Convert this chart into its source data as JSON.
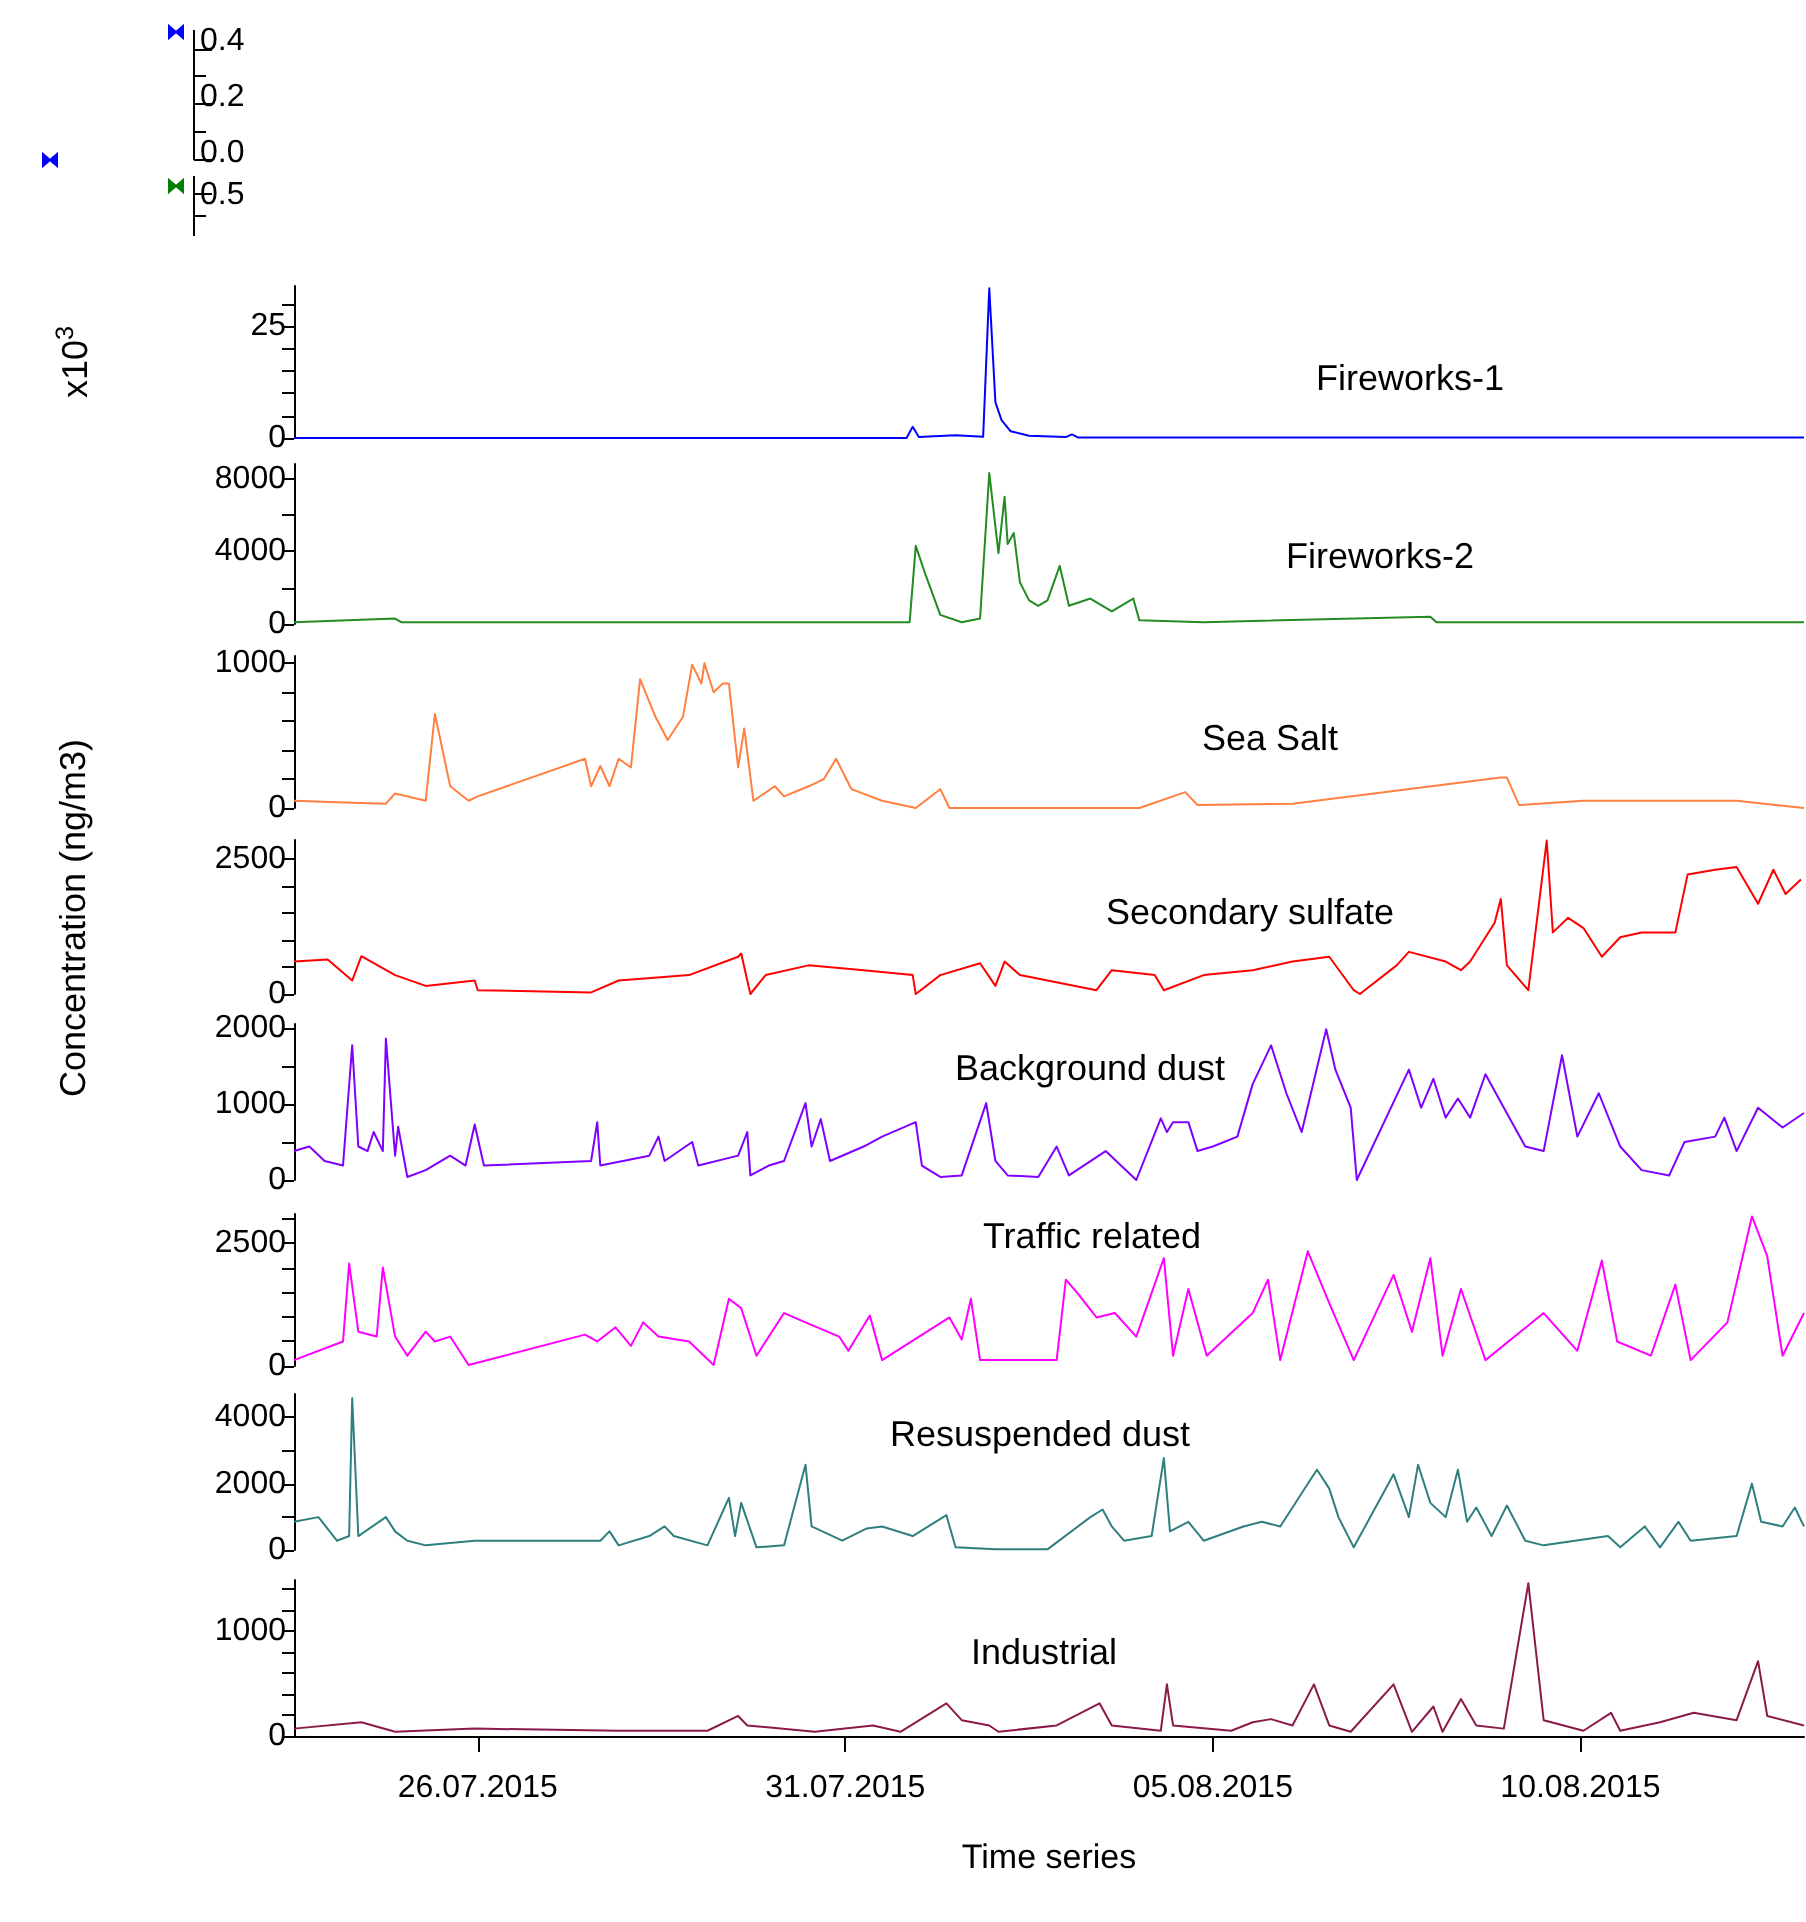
{
  "chart_data": [
    {
      "type": "other",
      "annotations": [
        "0.4",
        "0.2",
        "0.0",
        "0.5"
      ]
    },
    {
      "type": "line",
      "title": "Fireworks-1",
      "ylabel": "x10$^{3}$",
      "xlim": [
        "2015-07-23T12:00",
        "2015-08-13T01:00"
      ],
      "ylim": [
        0,
        34
      ],
      "yticks": [
        0,
        {
          "value": 5,
          "label": null
        },
        {
          "value": 10,
          "label": null
        },
        {
          "value": 15,
          "label": null
        },
        {
          "value": 20,
          "label": null
        },
        25,
        {
          "value": 30,
          "label": null
        }
      ],
      "tick_labels": "y",
      "x": [
        "2015-07-23T12:00",
        "2015-07-31T20:00",
        "2015-07-31T22:00",
        "2015-08-01T00:00",
        "2015-08-01T12:00",
        "2015-08-01T21:00",
        "2015-08-01T23:00",
        "2015-08-02T01:00",
        "2015-08-02T03:00",
        "2015-08-02T06:00",
        "2015-08-02T12:00",
        "2015-08-03T00:00",
        "2015-08-03T02:00",
        "2015-08-03T04:00",
        "2015-08-13T01:00"
      ],
      "series": [
        {
          "color": "#0000ff",
          "values": [
            0,
            0,
            2.5,
            0.2,
            0.6,
            0.3,
            33.5,
            8,
            4,
            1.5,
            0.5,
            0.2,
            0.8,
            0.1,
            0.1
          ]
        }
      ]
    },
    {
      "type": "line",
      "title": "Fireworks-2",
      "xlim": [
        "2015-07-23T12:00",
        "2015-08-13T01:00"
      ],
      "ylim": [
        0,
        8800
      ],
      "yticks": [
        0,
        {
          "value": 2000,
          "label": null
        },
        4000,
        {
          "value": 6000,
          "label": null
        },
        8000
      ],
      "tick_labels": "y",
      "x": [
        "2015-07-23T12:00",
        "2015-07-24T21:00",
        "2015-07-24T23:00",
        "2015-07-31T21:00",
        "2015-07-31T23:00",
        "2015-08-01T02:00",
        "2015-08-01T07:00",
        "2015-08-01T14:00",
        "2015-08-01T20:00",
        "2015-08-01T23:00",
        "2015-08-02T02:00",
        "2015-08-02T04:00",
        "2015-08-02T05:00",
        "2015-08-02T07:00",
        "2015-08-02T09:00",
        "2015-08-02T12:00",
        "2015-08-02T15:00",
        "2015-08-02T18:00",
        "2015-08-02T22:00",
        "2015-08-03T01:00",
        "2015-08-03T08:00",
        "2015-08-03T15:00",
        "2015-08-03T22:00",
        "2015-08-04T00:00",
        "2015-08-04T21:00",
        "2015-08-07T23:00",
        "2015-08-08T01:00",
        "2015-08-13T01:00"
      ],
      "series": [
        {
          "color": "#228b22",
          "values": [
            100,
            300,
            100,
            100,
            4300,
            2800,
            500,
            100,
            300,
            8300,
            3900,
            7000,
            4400,
            5000,
            2300,
            1300,
            1000,
            1300,
            3200,
            1000,
            1400,
            700,
            1400,
            200,
            100,
            400,
            100,
            100
          ]
        }
      ]
    },
    {
      "type": "line",
      "title": "Sea Salt",
      "xlim": [
        "2015-07-23T12:00",
        "2015-08-13T01:00"
      ],
      "ylim": [
        0,
        1050
      ],
      "yticks": [
        0,
        {
          "value": 200,
          "label": null
        },
        {
          "value": 400,
          "label": null
        },
        {
          "value": 600,
          "label": null
        },
        {
          "value": 800,
          "label": null
        },
        1000
      ],
      "tick_labels": "y",
      "x": [
        "2015-07-23T12:00",
        "2015-07-24T02:00",
        "2015-07-24T18:00",
        "2015-07-24T21:00",
        "2015-07-25T07:00",
        "2015-07-25T10:00",
        "2015-07-25T15:00",
        "2015-07-25T21:00",
        "2015-07-26T00:00",
        "2015-07-27T11:00",
        "2015-07-27T13:00",
        "2015-07-27T16:00",
        "2015-07-27T19:00",
        "2015-07-27T22:00",
        "2015-07-28T02:00",
        "2015-07-28T05:00",
        "2015-07-28T10:00",
        "2015-07-28T14:00",
        "2015-07-28T19:00",
        "2015-07-28T22:00",
        "2015-07-29T01:00",
        "2015-07-29T02:00",
        "2015-07-29T05:00",
        "2015-07-29T08:00",
        "2015-07-29T10:00",
        "2015-07-29T13:00",
        "2015-07-29T15:00",
        "2015-07-29T18:00",
        "2015-07-30T01:00",
        "2015-07-30T04:00",
        "2015-07-30T12:00",
        "2015-07-30T17:00",
        "2015-07-30T21:00",
        "2015-07-31T02:00",
        "2015-07-31T12:00",
        "2015-07-31T23:00",
        "2015-08-01T07:00",
        "2015-08-01T10:00",
        "2015-08-04T00:00",
        "2015-08-04T15:00",
        "2015-08-04T19:00",
        "2015-08-06T02:00",
        "2015-08-08T22:00",
        "2015-08-09T00:00",
        "2015-08-09T04:00",
        "2015-08-10T01:00",
        "2015-08-12T03:00",
        "2015-08-13T01:00"
      ],
      "series": [
        {
          "color": "#ff8040",
          "values": [
            50,
            40,
            30,
            100,
            50,
            650,
            150,
            50,
            80,
            340,
            150,
            290,
            150,
            340,
            280,
            890,
            630,
            470,
            630,
            990,
            860,
            1000,
            800,
            860,
            860,
            280,
            550,
            50,
            150,
            80,
            150,
            200,
            340,
            130,
            50,
            0,
            130,
            0,
            0,
            110,
            20,
            30,
            210,
            210,
            20,
            50,
            50,
            0
          ]
        }
      ]
    },
    {
      "type": "line",
      "title": "Secondary sulfate",
      "ylabel": "Concentration (ng/m3)",
      "xlim": [
        "2015-07-23T12:00",
        "2015-08-13T01:00"
      ],
      "ylim": [
        0,
        2850
      ],
      "yticks": [
        0,
        {
          "value": 500,
          "label": null
        },
        {
          "value": 1000,
          "label": null
        },
        {
          "value": 1500,
          "label": null
        },
        {
          "value": 2000,
          "label": null
        },
        2500
      ],
      "tick_labels": "y",
      "x": [
        "2015-07-23T12:00",
        "2015-07-23T23:00",
        "2015-07-24T07:00",
        "2015-07-24T10:00",
        "2015-07-24T21:00",
        "2015-07-25T07:00",
        "2015-07-25T23:00",
        "2015-07-26T00:00",
        "2015-07-27T13:00",
        "2015-07-27T22:00",
        "2015-07-28T21:00",
        "2015-07-29T13:00",
        "2015-07-29T14:00",
        "2015-07-29T17:00",
        "2015-07-29T22:00",
        "2015-07-30T12:00",
        "2015-07-31T06:00",
        "2015-07-31T22:00",
        "2015-07-31T23:00",
        "2015-08-01T07:00",
        "2015-08-01T20:00",
        "2015-08-02T01:00",
        "2015-08-02T04:00",
        "2015-08-02T09:00",
        "2015-08-03T10:00",
        "2015-08-03T15:00",
        "2015-08-04T05:00",
        "2015-08-04T08:00",
        "2015-08-04T21:00",
        "2015-08-05T13:00",
        "2015-08-06T02:00",
        "2015-08-06T14:00",
        "2015-08-06T22:00",
        "2015-08-07T00:00",
        "2015-08-07T12:00",
        "2015-08-07T16:00",
        "2015-08-08T04:00",
        "2015-08-08T09:00",
        "2015-08-08T12:00",
        "2015-08-08T20:00",
        "2015-08-08T22:00",
        "2015-08-09T00:00",
        "2015-08-09T07:00",
        "2015-08-09T13:00",
        "2015-08-09T15:00",
        "2015-08-09T20:00",
        "2015-08-10T01:00",
        "2015-08-10T07:00",
        "2015-08-10T13:00",
        "2015-08-10T20:00",
        "2015-08-11T07:00",
        "2015-08-11T11:00",
        "2015-08-11T20:00",
        "2015-08-12T03:00",
        "2015-08-12T10:00",
        "2015-08-12T15:00",
        "2015-08-12T19:00",
        "2015-08-13T00:00"
      ],
      "series": [
        {
          "color": "#ff0000",
          "values": [
            600,
            640,
            250,
            700,
            350,
            150,
            250,
            70,
            30,
            250,
            350,
            690,
            750,
            0,
            350,
            530,
            440,
            350,
            0,
            350,
            570,
            150,
            600,
            350,
            70,
            440,
            350,
            70,
            350,
            440,
            600,
            690,
            70,
            0,
            530,
            780,
            600,
            440,
            600,
            1320,
            1760,
            530,
            70,
            2840,
            1140,
            1410,
            1220,
            690,
            1050,
            1140,
            1140,
            2210,
            2300,
            2350,
            1670,
            2300,
            1850,
            2120
          ]
        }
      ]
    },
    {
      "type": "line",
      "title": "Background dust",
      "xlim": [
        "2015-07-23T12:00",
        "2015-08-13T01:00"
      ],
      "ylim": [
        0,
        2050
      ],
      "yticks": [
        0,
        {
          "value": 500,
          "label": null
        },
        1000,
        {
          "value": 1500,
          "label": null
        },
        2000
      ],
      "tick_labels": "y",
      "x": [
        "2015-07-23T12:00",
        "2015-07-23T17:00",
        "2015-07-23T22:00",
        "2015-07-24T04:00",
        "2015-07-24T07:00",
        "2015-07-24T09:00",
        "2015-07-24T12:00",
        "2015-07-24T14:00",
        "2015-07-24T17:00",
        "2015-07-24T18:00",
        "2015-07-24T21:00",
        "2015-07-24T22:00",
        "2015-07-25T01:00",
        "2015-07-25T07:00",
        "2015-07-25T15:00",
        "2015-07-25T20:00",
        "2015-07-25T23:00",
        "2015-07-26T02:00",
        "2015-07-27T13:00",
        "2015-07-27T15:00",
        "2015-07-27T16:00",
        "2015-07-28T08:00",
        "2015-07-28T11:00",
        "2015-07-28T13:00",
        "2015-07-28T22:00",
        "2015-07-29T00:00",
        "2015-07-29T13:00",
        "2015-07-29T16:00",
        "2015-07-29T17:00",
        "2015-07-29T23:00",
        "2015-07-30T04:00",
        "2015-07-30T11:00",
        "2015-07-30T13:00",
        "2015-07-30T16:00",
        "2015-07-30T19:00",
        "2015-07-31T06:00",
        "2015-07-31T12:00",
        "2015-07-31T23:00",
        "2015-08-01T01:00",
        "2015-08-01T07:00",
        "2015-08-01T14:00",
        "2015-08-01T22:00",
        "2015-08-02T01:00",
        "2015-08-02T05:00",
        "2015-08-02T15:00",
        "2015-08-02T21:00",
        "2015-08-03T01:00",
        "2015-08-03T13:00",
        "2015-08-03T23:00",
        "2015-08-04T07:00",
        "2015-08-04T09:00",
        "2015-08-04T11:00",
        "2015-08-04T16:00",
        "2015-08-04T19:00",
        "2015-08-05T00:00",
        "2015-08-05T08:00",
        "2015-08-05T13:00",
        "2015-08-05T19:00",
        "2015-08-06T00:00",
        "2015-08-06T05:00",
        "2015-08-06T13:00",
        "2015-08-06T16:00",
        "2015-08-06T21:00",
        "2015-08-06T23:00",
        "2015-08-07T16:00",
        "2015-08-07T20:00",
        "2015-08-08T00:00",
        "2015-08-08T04:00",
        "2015-08-08T08:00",
        "2015-08-08T12:00",
        "2015-08-08T17:00",
        "2015-08-08T23:00",
        "2015-08-09T06:00",
        "2015-08-09T12:00",
        "2015-08-09T18:00",
        "2015-08-09T23:00",
        "2015-08-10T06:00",
        "2015-08-10T13:00",
        "2015-08-10T20:00",
        "2015-08-11T05:00",
        "2015-08-11T10:00",
        "2015-08-11T20:00",
        "2015-08-11T23:00",
        "2015-08-12T03:00",
        "2015-08-12T10:00",
        "2015-08-12T18:00",
        "2015-08-13T01:00"
      ],
      "series": [
        {
          "color": "#7f00ff",
          "values": [
            380,
            440,
            250,
            190,
            1770,
            440,
            380,
            630,
            380,
            1860,
            320,
            700,
            40,
            130,
            320,
            190,
            730,
            190,
            250,
            760,
            190,
            320,
            570,
            250,
            500,
            190,
            320,
            630,
            60,
            190,
            250,
            1010,
            440,
            800,
            250,
            440,
            570,
            760,
            190,
            40,
            60,
            1010,
            250,
            60,
            40,
            440,
            60,
            380,
            0,
            810,
            630,
            760,
            760,
            380,
            440,
            570,
            1260,
            1770,
            1140,
            630,
            1980,
            1450,
            950,
            0,
            1450,
            950,
            1330,
            820,
            1070,
            820,
            1390,
            950,
            440,
            380,
            1640,
            570,
            1140,
            440,
            130,
            60,
            500,
            570,
            820,
            380,
            950,
            690,
            880
          ]
        }
      ]
    },
    {
      "type": "line",
      "title": "Traffic related",
      "xlim": [
        "2015-07-23T12:00",
        "2015-08-13T01:00"
      ],
      "ylim": [
        0,
        3100
      ],
      "yticks": [
        0,
        {
          "value": 500,
          "label": null
        },
        {
          "value": 1000,
          "label": null
        },
        {
          "value": 1500,
          "label": null
        },
        {
          "value": 2000,
          "label": null
        },
        2500,
        {
          "value": 3000,
          "label": null
        }
      ],
      "tick_labels": "y",
      "x": [
        "2015-07-23T12:00",
        "2015-07-24T04:00",
        "2015-07-24T06:00",
        "2015-07-24T09:00",
        "2015-07-24T15:00",
        "2015-07-24T17:00",
        "2015-07-24T21:00",
        "2015-07-25T01:00",
        "2015-07-25T07:00",
        "2015-07-25T10:00",
        "2015-07-25T15:00",
        "2015-07-25T21:00",
        "2015-07-27T11:00",
        "2015-07-27T15:00",
        "2015-07-27T21:00",
        "2015-07-28T02:00",
        "2015-07-28T06:00",
        "2015-07-28T11:00",
        "2015-07-28T21:00",
        "2015-07-29T05:00",
        "2015-07-29T10:00",
        "2015-07-29T14:00",
        "2015-07-29T19:00",
        "2015-07-30T04:00",
        "2015-07-30T11:00",
        "2015-07-30T22:00",
        "2015-07-31T01:00",
        "2015-07-31T08:00",
        "2015-07-31T12:00",
        "2015-08-01T10:00",
        "2015-08-01T14:00",
        "2015-08-01T17:00",
        "2015-08-01T20:00",
        "2015-08-02T21:00",
        "2015-08-03T00:00",
        "2015-08-03T04:00",
        "2015-08-03T10:00",
        "2015-08-03T16:00",
        "2015-08-03T23:00",
        "2015-08-04T08:00",
        "2015-08-04T11:00",
        "2015-08-04T16:00",
        "2015-08-04T22:00",
        "2015-08-05T13:00",
        "2015-08-05T18:00",
        "2015-08-05T22:00",
        "2015-08-06T07:00",
        "2015-08-06T14:00",
        "2015-08-06T22:00",
        "2015-08-07T11:00",
        "2015-08-07T17:00",
        "2015-08-07T23:00",
        "2015-08-08T03:00",
        "2015-08-08T09:00",
        "2015-08-08T17:00",
        "2015-08-09T12:00",
        "2015-08-09T23:00",
        "2015-08-10T07:00",
        "2015-08-10T12:00",
        "2015-08-10T23:00",
        "2015-08-11T07:00",
        "2015-08-11T12:00",
        "2015-08-12T00:00",
        "2015-08-12T08:00",
        "2015-08-12T13:00",
        "2015-08-12T18:00",
        "2015-08-13T01:00"
      ],
      "series": [
        {
          "color": "#ff00ff",
          "values": [
            120,
            500,
            2090,
            700,
            600,
            2010,
            600,
            210,
            700,
            500,
            600,
            20,
            640,
            500,
            790,
            410,
            890,
            600,
            500,
            20,
            1370,
            1180,
            210,
            1080,
            890,
            600,
            310,
            1030,
            120,
            990,
            540,
            1370,
            120,
            120,
            1760,
            1470,
            990,
            1080,
            600,
            2200,
            210,
            1570,
            210,
            1080,
            1760,
            120,
            2340,
            1280,
            120,
            1860,
            700,
            2200,
            210,
            1570,
            120,
            1080,
            310,
            2150,
            500,
            210,
            1660,
            120,
            890,
            3050,
            2240,
            210,
            1080
          ]
        }
      ]
    },
    {
      "type": "line",
      "title": "Resuspended dust",
      "xlim": [
        "2015-07-23T12:00",
        "2015-08-13T01:00"
      ],
      "ylim": [
        0,
        4700
      ],
      "yticks": [
        0,
        {
          "value": 1000,
          "label": null
        },
        2000,
        {
          "value": 3000,
          "label": null
        },
        4000
      ],
      "tick_labels": "y",
      "x": [
        "2015-07-23T12:00",
        "2015-07-23T20:00",
        "2015-07-24T02:00",
        "2015-07-24T06:00",
        "2015-07-24T07:00",
        "2015-07-24T09:00",
        "2015-07-24T18:00",
        "2015-07-24T21:00",
        "2015-07-25T01:00",
        "2015-07-25T07:00",
        "2015-07-25T23:00",
        "2015-07-27T16:00",
        "2015-07-27T19:00",
        "2015-07-27T22:00",
        "2015-07-28T08:00",
        "2015-07-28T13:00",
        "2015-07-28T16:00",
        "2015-07-29T03:00",
        "2015-07-29T10:00",
        "2015-07-29T12:00",
        "2015-07-29T14:00",
        "2015-07-29T19:00",
        "2015-07-30T04:00",
        "2015-07-30T11:00",
        "2015-07-30T13:00",
        "2015-07-30T23:00",
        "2015-07-31T07:00",
        "2015-07-31T12:00",
        "2015-07-31T22:00",
        "2015-08-01T09:00",
        "2015-08-01T12:00",
        "2015-08-02T01:00",
        "2015-08-02T18:00",
        "2015-08-03T08:00",
        "2015-08-03T12:00",
        "2015-08-03T15:00",
        "2015-08-03T19:00",
        "2015-08-04T04:00",
        "2015-08-04T08:00",
        "2015-08-04T10:00",
        "2015-08-04T16:00",
        "2015-08-04T21:00",
        "2015-08-05T10:00",
        "2015-08-05T16:00",
        "2015-08-05T22:00",
        "2015-08-06T08:00",
        "2015-08-06T10:00",
        "2015-08-06T14:00",
        "2015-08-06T17:00",
        "2015-08-06T22:00",
        "2015-08-07T11:00",
        "2015-08-07T16:00",
        "2015-08-07T19:00",
        "2015-08-07T23:00",
        "2015-08-08T04:00",
        "2015-08-08T08:00",
        "2015-08-08T11:00",
        "2015-08-08T14:00",
        "2015-08-08T19:00",
        "2015-08-09T00:00",
        "2015-08-09T06:00",
        "2015-08-09T12:00",
        "2015-08-10T09:00",
        "2015-08-10T13:00",
        "2015-08-10T21:00",
        "2015-08-11T02:00",
        "2015-08-11T08:00",
        "2015-08-11T12:00",
        "2015-08-12T03:00",
        "2015-08-12T08:00",
        "2015-08-12T11:00",
        "2015-08-12T18:00",
        "2015-08-12T22:00",
        "2015-08-13T01:00"
      ],
      "series": [
        {
          "color": "#2f7f7f",
          "values": [
            850,
            990,
            280,
            420,
            4570,
            420,
            990,
            560,
            280,
            140,
            280,
            280,
            560,
            140,
            420,
            710,
            420,
            140,
            1570,
            420,
            1420,
            80,
            140,
            2570,
            710,
            280,
            650,
            710,
            420,
            1050,
            80,
            20,
            20,
            990,
            1220,
            710,
            280,
            420,
            2770,
            560,
            850,
            280,
            710,
            850,
            710,
            2140,
            2420,
            1850,
            990,
            80,
            2280,
            990,
            2570,
            1420,
            990,
            2420,
            850,
            1280,
            420,
            1340,
            280,
            140,
            420,
            80,
            710,
            80,
            850,
            280,
            420,
            2000,
            850,
            710,
            1280,
            710
          ]
        }
      ]
    },
    {
      "type": "line",
      "title": "Industrial",
      "xlabel": "Time series",
      "xlim": [
        "2015-07-23T12:00",
        "2015-08-13T01:00"
      ],
      "xticks": [
        {
          "value": "2015-07-26",
          "label": "26.07.2015"
        },
        {
          "value": "2015-07-31",
          "label": "31.07.2015"
        },
        {
          "value": "2015-08-05",
          "label": "05.08.2015"
        },
        {
          "value": "2015-08-10",
          "label": "10.08.2015"
        }
      ],
      "ylim": [
        0,
        1480
      ],
      "yticks": [
        0,
        {
          "value": 200,
          "label": null
        },
        {
          "value": 400,
          "label": null
        },
        {
          "value": 600,
          "label": null
        },
        {
          "value": 800,
          "label": null
        },
        1000,
        {
          "value": 1200,
          "label": null
        },
        {
          "value": 1400,
          "label": null
        }
      ],
      "x": [
        "2015-07-23T12:00",
        "2015-07-24T10:00",
        "2015-07-24T21:00",
        "2015-07-25T23:00",
        "2015-07-27T22:00",
        "2015-07-29T03:00",
        "2015-07-29T13:00",
        "2015-07-29T16:00",
        "2015-07-30T14:00",
        "2015-07-31T09:00",
        "2015-07-31T18:00",
        "2015-08-01T09:00",
        "2015-08-01T14:00",
        "2015-08-01T23:00",
        "2015-08-02T02:00",
        "2015-08-02T21:00",
        "2015-08-03T11:00",
        "2015-08-03T15:00",
        "2015-08-04T07:00",
        "2015-08-04T09:00",
        "2015-08-04T11:00",
        "2015-08-05T06:00",
        "2015-08-05T13:00",
        "2015-08-05T19:00",
        "2015-08-06T02:00",
        "2015-08-06T09:00",
        "2015-08-06T14:00",
        "2015-08-06T21:00",
        "2015-08-07T11:00",
        "2015-08-07T17:00",
        "2015-08-08T00:00",
        "2015-08-08T03:00",
        "2015-08-08T09:00",
        "2015-08-08T14:00",
        "2015-08-08T23:00",
        "2015-08-09T07:00",
        "2015-08-09T12:00",
        "2015-08-10T01:00",
        "2015-08-10T10:00",
        "2015-08-10T13:00",
        "2015-08-11T02:00",
        "2015-08-11T13:00",
        "2015-08-12T03:00",
        "2015-08-12T10:00",
        "2015-08-12T13:00",
        "2015-08-13T01:00"
      ],
      "series": [
        {
          "color": "#8b1a4a",
          "values": [
            70,
            130,
            40,
            70,
            50,
            50,
            190,
            100,
            40,
            100,
            40,
            310,
            150,
            100,
            40,
            100,
            310,
            100,
            50,
            490,
            100,
            50,
            130,
            160,
            100,
            490,
            100,
            40,
            490,
            40,
            280,
            40,
            350,
            100,
            70,
            1450,
            150,
            50,
            220,
            50,
            130,
            220,
            150,
            710,
            190,
            100
          ]
        }
      ]
    }
  ]
}
